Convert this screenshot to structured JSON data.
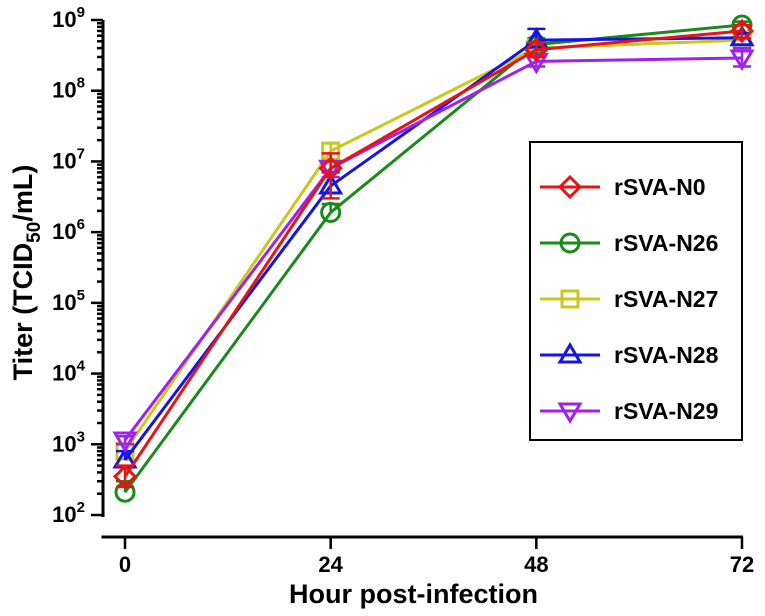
{
  "chart_data": {
    "type": "line",
    "title": "",
    "xlabel": "Hour post-infection",
    "ylabel_parts": {
      "prefix": "Titer (TCID",
      "subscript": "50",
      "suffix": "/mL)"
    },
    "yscale": "log",
    "ylim": [
      100,
      1000000000
    ],
    "xlim": [
      0,
      72
    ],
    "x": [
      0,
      24,
      48,
      72
    ],
    "x_tick_labels": [
      "0",
      "24",
      "48",
      "72"
    ],
    "y_ticks": [
      {
        "value": 100,
        "base": "10",
        "exp": "2"
      },
      {
        "value": 1000,
        "base": "10",
        "exp": "3"
      },
      {
        "value": 10000,
        "base": "10",
        "exp": "4"
      },
      {
        "value": 100000,
        "base": "10",
        "exp": "5"
      },
      {
        "value": 1000000,
        "base": "10",
        "exp": "6"
      },
      {
        "value": 10000000,
        "base": "10",
        "exp": "7"
      },
      {
        "value": 100000000,
        "base": "10",
        "exp": "8"
      },
      {
        "value": 1000000000,
        "base": "10",
        "exp": "9"
      }
    ],
    "legend_position": "right",
    "series": [
      {
        "name": "rSVA-N26",
        "color": "#1a8a1a",
        "marker": "circle",
        "values": [
          210,
          1900000,
          450000000,
          850000000
        ],
        "err_high": [
          300,
          2500000,
          550000000,
          950000000
        ]
      },
      {
        "name": "rSVA-N27",
        "color": "#c8c81e",
        "marker": "square",
        "values": [
          800,
          14000000,
          400000000,
          520000000
        ],
        "err_high": [
          1000,
          18000000,
          500000000,
          650000000
        ]
      },
      {
        "name": "rSVA-N28",
        "color": "#1414e6",
        "marker": "triangle-up",
        "values": [
          600,
          4500000,
          520000000,
          560000000
        ],
        "err_high": [
          800,
          7000000,
          750000000,
          650000000
        ]
      },
      {
        "name": "rSVA-N29",
        "color": "#a020f0",
        "marker": "triangle-down",
        "values": [
          1150,
          8000000,
          260000000,
          290000000
        ],
        "err_high": [
          1300,
          10000000,
          320000000,
          400000000
        ],
        "err_low": [
          1000,
          6000000,
          220000000,
          220000000
        ]
      },
      {
        "name": "rSVA-N0",
        "color": "#e61414",
        "marker": "diamond",
        "values": [
          350,
          8000000,
          380000000,
          700000000
        ],
        "err_high": [
          500,
          13000000,
          480000000,
          850000000
        ],
        "err_low": [
          250,
          3000000,
          300000000,
          550000000
        ]
      }
    ],
    "legend_order": [
      "rSVA-N0",
      "rSVA-N26",
      "rSVA-N27",
      "rSVA-N28",
      "rSVA-N29"
    ]
  }
}
